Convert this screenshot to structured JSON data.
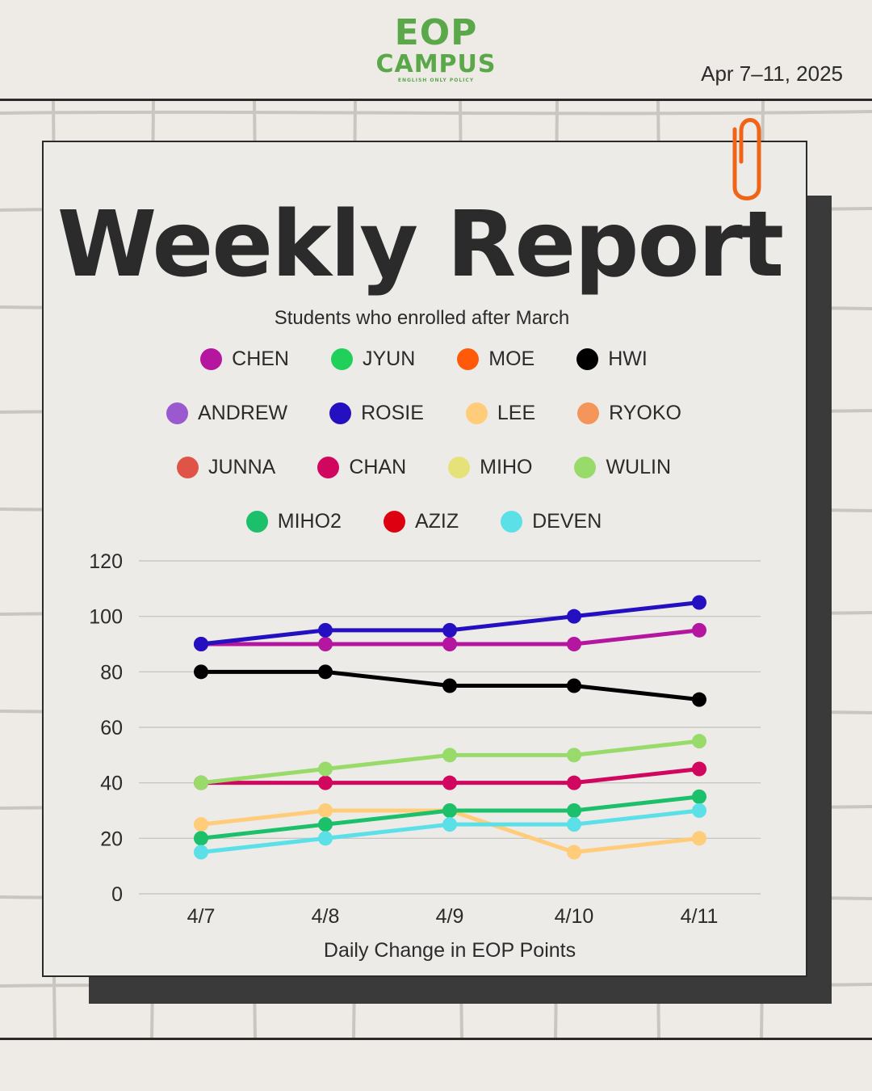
{
  "header": {
    "logo_line1": "EOP",
    "logo_line2": "CAMPUS",
    "logo_tagline": "ENGLISH ONLY POLICY",
    "date": "Apr 7–11, 2025"
  },
  "report": {
    "title": "Weekly Report",
    "subtitle": "Students who enrolled after March"
  },
  "colors": {
    "accent_green": "#5aa84a",
    "clip_orange": "#f06418",
    "ink": "#2b2b2b",
    "grid": "#c8c5bf"
  },
  "chart_data": {
    "type": "line",
    "title": "Weekly Report",
    "subtitle": "Students who enrolled after March",
    "xlabel": "Daily Change in EOP Points",
    "ylabel": "",
    "categories": [
      "4/7",
      "4/8",
      "4/9",
      "4/10",
      "4/11"
    ],
    "ylim": [
      0,
      120
    ],
    "yticks": [
      "0",
      "20",
      "40",
      "60",
      "80",
      "100",
      "120"
    ],
    "grid": true,
    "legend_position": "top",
    "series": [
      {
        "name": "CHEN",
        "color": "#b5169f",
        "values": [
          90,
          90,
          90,
          90,
          95
        ]
      },
      {
        "name": "JYUN",
        "color": "#21d05a",
        "values": null
      },
      {
        "name": "MOE",
        "color": "#ff5a0a",
        "values": null
      },
      {
        "name": "HWI",
        "color": "#000000",
        "values": [
          80,
          80,
          75,
          75,
          70
        ]
      },
      {
        "name": "ANDREW",
        "color": "#9b59d0",
        "values": null
      },
      {
        "name": "ROSIE",
        "color": "#2410c0",
        "values": [
          90,
          95,
          95,
          100,
          105
        ]
      },
      {
        "name": "LEE",
        "color": "#ffcc7a",
        "values": [
          25,
          30,
          30,
          15,
          20
        ]
      },
      {
        "name": "RYOKO",
        "color": "#f4955a",
        "values": null
      },
      {
        "name": "JUNNA",
        "color": "#e05448",
        "values": null
      },
      {
        "name": "CHAN",
        "color": "#d1065e",
        "values": [
          40,
          40,
          40,
          40,
          45
        ]
      },
      {
        "name": "MIHO",
        "color": "#e6e27a",
        "values": null
      },
      {
        "name": "WULIN",
        "color": "#99db6a",
        "values": [
          40,
          45,
          50,
          50,
          55
        ]
      },
      {
        "name": "MIHO2",
        "color": "#1cc06a",
        "values": [
          20,
          25,
          30,
          30,
          35
        ]
      },
      {
        "name": "AZIZ",
        "color": "#dd0010",
        "values": null
      },
      {
        "name": "DEVEN",
        "color": "#5ce0e8",
        "values": [
          15,
          20,
          25,
          25,
          30
        ]
      }
    ]
  }
}
